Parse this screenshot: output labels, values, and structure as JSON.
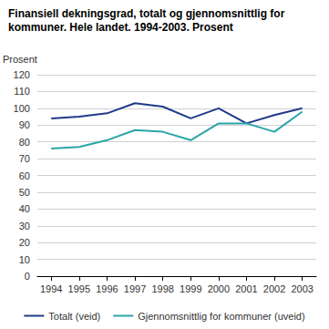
{
  "chart_data": {
    "type": "line",
    "title": "Finansiell dekningsgrad, totalt og gjennomsnittlig for kommuner. Hele landet. 1994-2003. Prosent",
    "ylabel": "Prosent",
    "categories": [
      "1994",
      "1995",
      "1996",
      "1997",
      "1998",
      "1999",
      "2000",
      "2001",
      "2002",
      "2003"
    ],
    "series": [
      {
        "name": "Totalt (veid)",
        "color": "#1f3a8a",
        "marker": "none",
        "values": [
          94,
          95,
          97,
          103,
          101,
          94,
          100,
          91,
          96,
          100
        ]
      },
      {
        "name": "Gjennomsnittlig for kommuner (uveid)",
        "color": "#2aa5a8",
        "marker": "none",
        "values": [
          76,
          77,
          81,
          87,
          86,
          81,
          91,
          91,
          86,
          98
        ]
      }
    ],
    "ylim": [
      0,
      120
    ],
    "yticks": [
      0,
      10,
      20,
      30,
      40,
      50,
      60,
      70,
      80,
      90,
      100,
      110,
      120
    ],
    "grid": true,
    "legend": "bottom"
  }
}
